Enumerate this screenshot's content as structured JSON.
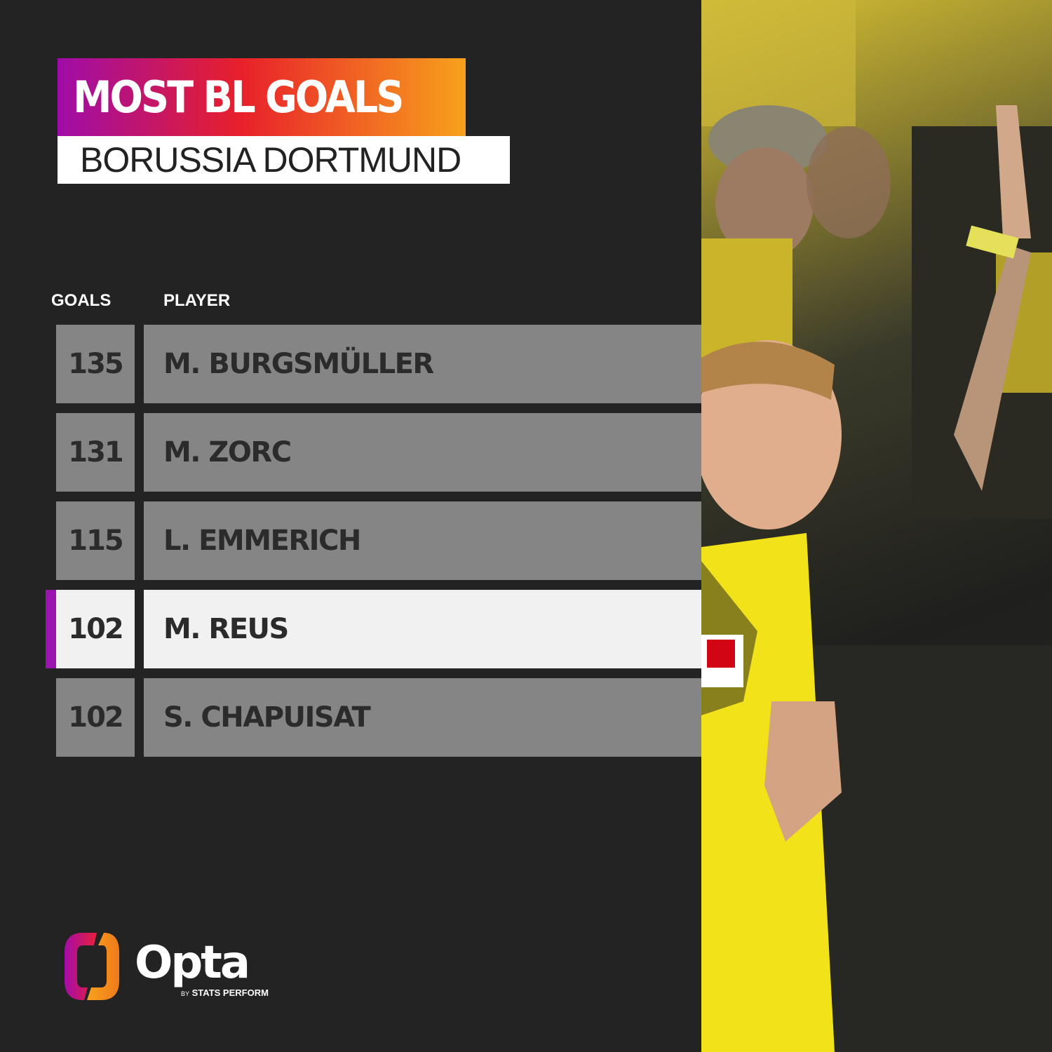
{
  "title": "MOST BL GOALS",
  "subtitle": "BORUSSIA DORTMUND",
  "columns": {
    "goals": "GOALS",
    "player": "PLAYER"
  },
  "rows": [
    {
      "goals": "135",
      "player": "M. BURGSMÜLLER",
      "highlighted": false
    },
    {
      "goals": "131",
      "player": "M. ZORC",
      "highlighted": false
    },
    {
      "goals": "115",
      "player": "L. EMMERICH",
      "highlighted": false
    },
    {
      "goals": "102",
      "player": "M. REUS",
      "highlighted": true
    },
    {
      "goals": "102",
      "player": "S. CHAPUISAT",
      "highlighted": false
    }
  ],
  "logo": {
    "name": "Opta",
    "tagline_by": "BY",
    "tagline": "STATS PERFORM"
  },
  "colors": {
    "background": "#232323",
    "row": "#858585",
    "highlight_row": "#f1f1f1",
    "highlight_marker": "#9b14b0",
    "gradient": [
      "#9f0ca8",
      "#e8202a",
      "#f7a21c"
    ]
  }
}
